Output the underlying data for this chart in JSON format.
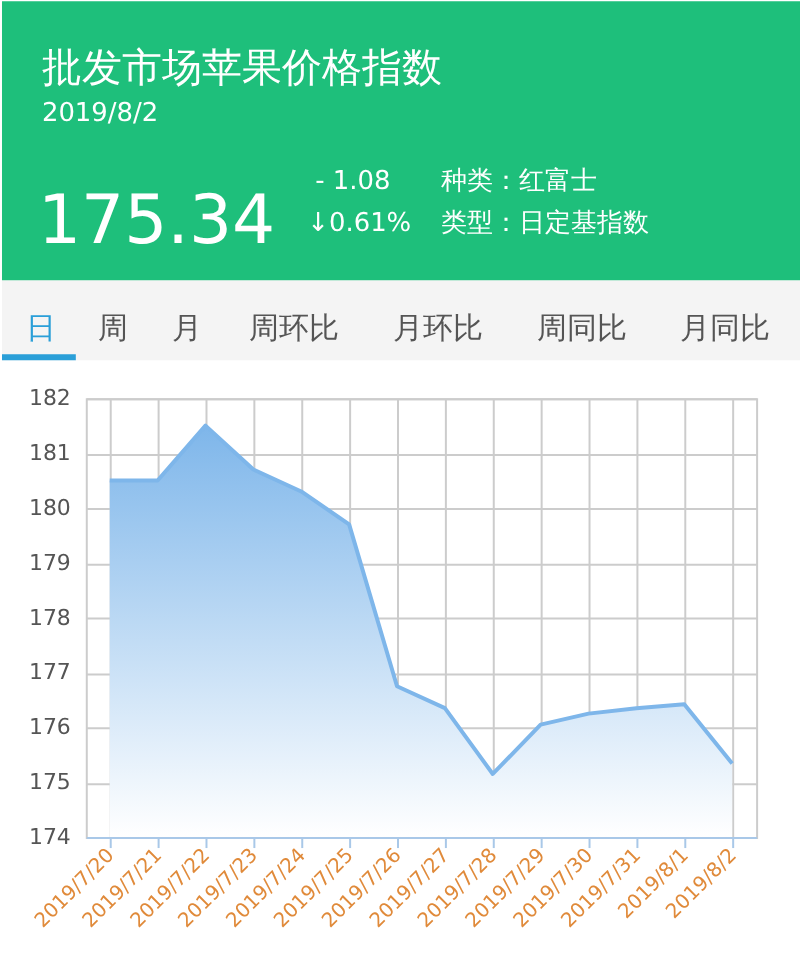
{
  "chart_data": {
    "type": "area",
    "title": "批发市场苹果价格指数",
    "subtitle": "2019/8/2",
    "annotations": [
      "175.34",
      "- 1.08",
      "↓0.61%",
      "种类：红富士",
      "类型：日定基指数",
      "日",
      "周",
      "月",
      "周环比",
      "月环比",
      "周同比",
      "月同比"
    ],
    "categories": [
      "2019/7/20",
      "2019/7/21",
      "2019/7/22",
      "2019/7/23",
      "2019/7/24",
      "2019/7/25",
      "2019/7/26",
      "2019/7/27",
      "2019/7/28",
      "2019/7/29",
      "2019/7/30",
      "2019/7/31",
      "2019/8/1",
      "2019/8/2"
    ],
    "series": [
      {
        "color": "#7eb6ea",
        "values": [
          180.5,
          180.5,
          181.5,
          180.7,
          180.3,
          179.7,
          176.75,
          176.35,
          175.15,
          176.05,
          176.25,
          176.35,
          176.42,
          175.34
        ]
      }
    ],
    "ylim": [
      174,
      182
    ],
    "yticks": [
      174,
      175,
      176,
      177,
      178,
      179,
      180,
      181,
      182
    ],
    "grid": true
  }
}
